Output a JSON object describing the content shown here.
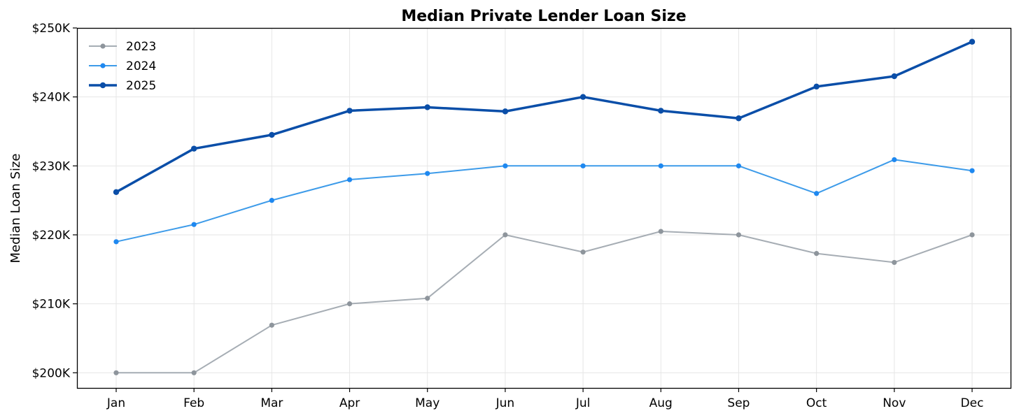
{
  "chart_data": {
    "type": "line",
    "title": "Median Private Lender Loan Size",
    "xlabel": "",
    "ylabel": "Median Loan Size",
    "categories": [
      "Jan",
      "Feb",
      "Mar",
      "Apr",
      "May",
      "Jun",
      "Jul",
      "Aug",
      "Sep",
      "Oct",
      "Nov",
      "Dec"
    ],
    "ylim": [
      197800,
      250000
    ],
    "yticks": [
      200000,
      210000,
      220000,
      230000,
      240000,
      250000
    ],
    "ytick_labels": [
      "$200K",
      "$210K",
      "$220K",
      "$230K",
      "$240K",
      "$250K"
    ],
    "grid": true,
    "legend_position": "upper left",
    "series": [
      {
        "name": "2023",
        "color": "#a6adb4",
        "marker_color": "#8e959c",
        "line_width": 2,
        "values": [
          200000,
          200000,
          206900,
          210000,
          210800,
          220000,
          217500,
          220500,
          220000,
          217300,
          216000,
          220000
        ]
      },
      {
        "name": "2024",
        "color": "#3d9be9",
        "marker_color": "#1e88f0",
        "line_width": 2,
        "values": [
          219000,
          221500,
          225000,
          228000,
          228900,
          230000,
          230000,
          230000,
          230000,
          226000,
          230900,
          229300
        ]
      },
      {
        "name": "2025",
        "color": "#0a4ea8",
        "marker_color": "#0a4ea8",
        "line_width": 3.5,
        "values": [
          226200,
          232500,
          234500,
          238000,
          238500,
          237900,
          240000,
          238000,
          236900,
          241500,
          243000,
          248000
        ]
      }
    ]
  }
}
